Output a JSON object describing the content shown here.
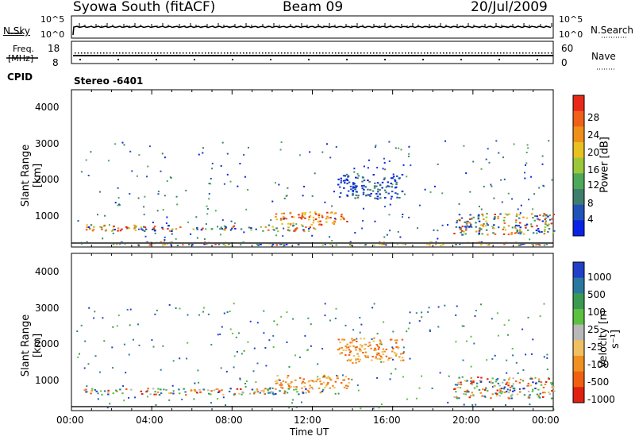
{
  "header": {
    "station": "Syowa South (fitACF)",
    "beam": "Beam 09",
    "date": "20/Jul/2009"
  },
  "nsky_panel": {
    "left_label": "N.Sky",
    "left_ticks": [
      "10^5",
      "10^0"
    ],
    "right_label": "N.Search",
    "right_ticks": [
      "10^5",
      "10^0"
    ]
  },
  "freq_panel": {
    "left_label_line1": "Freq.",
    "left_label_line2": "[MHz]",
    "left_ticks": [
      "18",
      "8"
    ],
    "right_label": "Nave",
    "right_ticks": [
      "60",
      "0"
    ]
  },
  "cpid": {
    "label": "CPID",
    "value": "Stereo -6401"
  },
  "x_axis": {
    "label": "Time UT",
    "ticks": [
      "00:00",
      "04:00",
      "08:00",
      "12:00",
      "16:00",
      "20:00",
      "00:00"
    ]
  },
  "chart_data": [
    {
      "type": "heatmap",
      "title": "",
      "xlabel": "Time UT",
      "ylabel": "Slant Range [km]",
      "y_ticks": [
        "1000",
        "2000",
        "3000",
        "4000"
      ],
      "ylim": [
        180,
        4500
      ],
      "colorbar": {
        "label": "Power [dB]",
        "ticks": [
          "4",
          "8",
          "12",
          "16",
          "20",
          "24",
          "28"
        ],
        "colors": [
          "#0a22e6",
          "#2152b8",
          "#3f7d6e",
          "#4ea85a",
          "#9bc83a",
          "#e8c020",
          "#f09018",
          "#f06018",
          "#e82818"
        ]
      },
      "bands": [
        {
          "t": [
            0.5,
            12.5
          ],
          "range": [
            600,
            780
          ],
          "level": "mixed"
        },
        {
          "t": [
            10.0,
            13.8
          ],
          "range": [
            780,
            1150
          ],
          "level": "high"
        },
        {
          "t": [
            13.2,
            16.5
          ],
          "range": [
            1500,
            2200
          ],
          "level": "low"
        },
        {
          "t": [
            19.0,
            24.0
          ],
          "range": [
            500,
            1100
          ],
          "level": "mixed"
        },
        {
          "t": [
            0.5,
            24.0
          ],
          "range": [
            200,
            300
          ],
          "level": "mixed"
        }
      ]
    },
    {
      "type": "heatmap",
      "title": "",
      "xlabel": "Time UT",
      "ylabel": "Slant Range [km]",
      "y_ticks": [
        "1000",
        "2000",
        "3000",
        "4000"
      ],
      "ylim": [
        180,
        4500
      ],
      "colorbar": {
        "label": "Velocity [m s⁻¹]",
        "ticks": [
          "1000",
          "500",
          "100",
          "25",
          "-25",
          "-100",
          "-500",
          "-1000"
        ],
        "colors": [
          "#2040c8",
          "#2a78a0",
          "#3a9a52",
          "#5cc040",
          "#b8b8b8",
          "#f0c060",
          "#f09020",
          "#f06010",
          "#e02010"
        ]
      },
      "bands": [
        {
          "t": [
            0.5,
            12.5
          ],
          "range": [
            600,
            780
          ],
          "level": "mixed"
        },
        {
          "t": [
            10.0,
            13.8
          ],
          "range": [
            780,
            1150
          ],
          "level": "away"
        },
        {
          "t": [
            13.2,
            16.5
          ],
          "range": [
            1500,
            2200
          ],
          "level": "away"
        },
        {
          "t": [
            19.0,
            24.0
          ],
          "range": [
            500,
            1100
          ],
          "level": "mixed"
        }
      ]
    }
  ]
}
